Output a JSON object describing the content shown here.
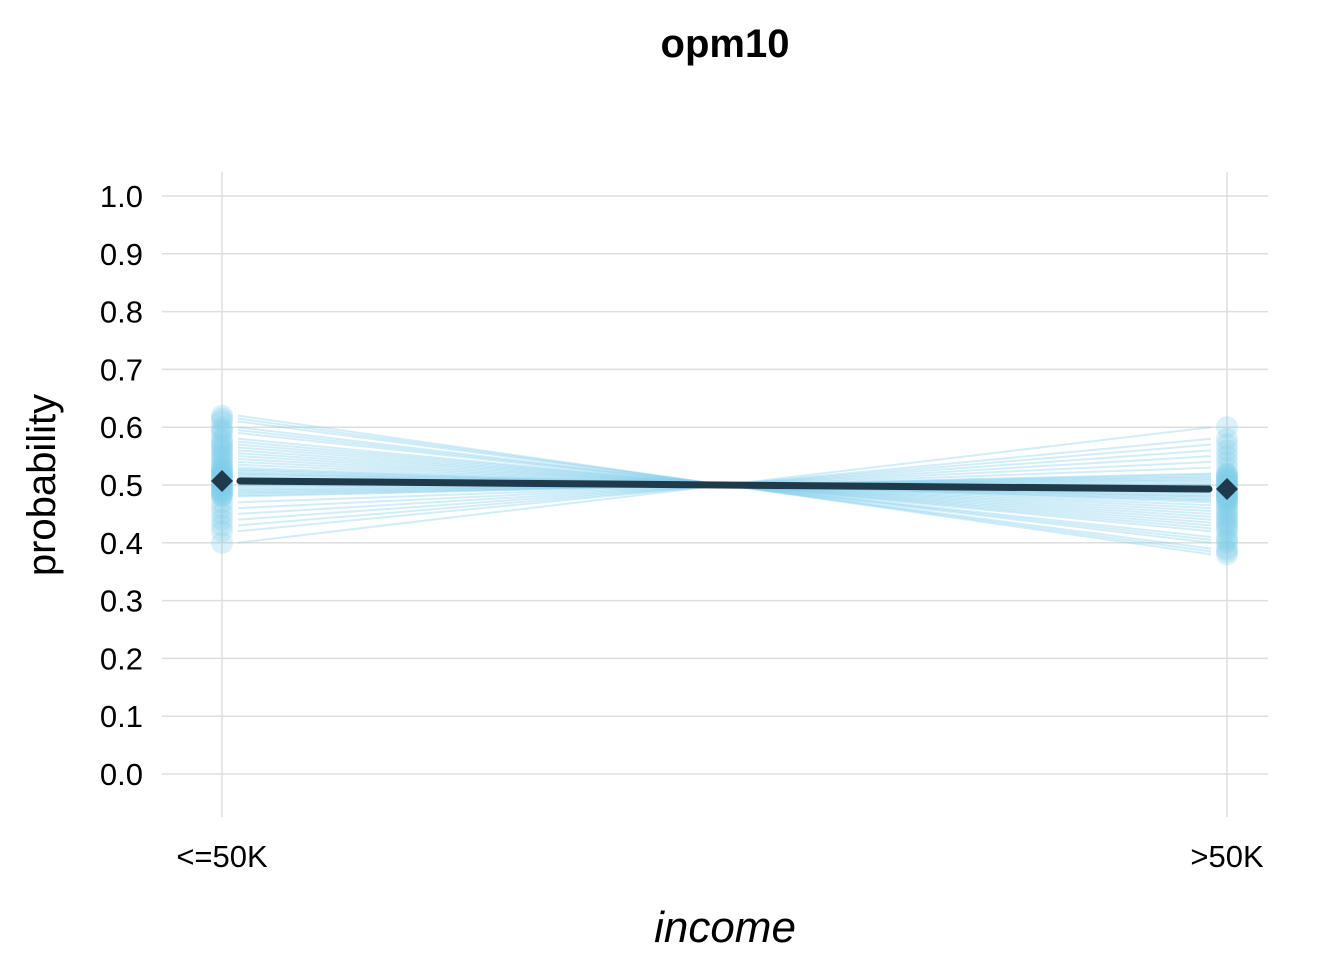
{
  "chart_data": {
    "type": "line",
    "title": "opm10",
    "xlabel": "income",
    "ylabel": "probability",
    "categories": [
      "<=50K",
      ">50K"
    ],
    "ylim": [
      0,
      1
    ],
    "yticks": [
      "0.0",
      "0.1",
      "0.2",
      "0.3",
      "0.4",
      "0.5",
      "0.6",
      "0.7",
      "0.8",
      "0.9",
      "1.0"
    ],
    "grid": true,
    "mean_series": {
      "values": [
        0.507,
        0.493
      ],
      "color": "#1f3a4a"
    },
    "sample_series_color": "#7ccbea",
    "sample_series": [
      [
        0.62,
        0.38
      ],
      [
        0.615,
        0.385
      ],
      [
        0.61,
        0.39
      ],
      [
        0.6,
        0.4
      ],
      [
        0.595,
        0.405
      ],
      [
        0.59,
        0.41
      ],
      [
        0.58,
        0.42
      ],
      [
        0.575,
        0.425
      ],
      [
        0.57,
        0.43
      ],
      [
        0.565,
        0.435
      ],
      [
        0.56,
        0.44
      ],
      [
        0.555,
        0.445
      ],
      [
        0.55,
        0.45
      ],
      [
        0.545,
        0.455
      ],
      [
        0.54,
        0.46
      ],
      [
        0.535,
        0.465
      ],
      [
        0.53,
        0.47
      ],
      [
        0.527,
        0.473
      ],
      [
        0.525,
        0.475
      ],
      [
        0.522,
        0.478
      ],
      [
        0.52,
        0.48
      ],
      [
        0.518,
        0.482
      ],
      [
        0.515,
        0.485
      ],
      [
        0.513,
        0.487
      ],
      [
        0.51,
        0.49
      ],
      [
        0.508,
        0.492
      ],
      [
        0.505,
        0.495
      ],
      [
        0.503,
        0.497
      ],
      [
        0.5,
        0.5
      ],
      [
        0.498,
        0.502
      ],
      [
        0.495,
        0.505
      ],
      [
        0.492,
        0.508
      ],
      [
        0.49,
        0.51
      ],
      [
        0.487,
        0.513
      ],
      [
        0.485,
        0.515
      ],
      [
        0.482,
        0.518
      ],
      [
        0.48,
        0.52
      ],
      [
        0.47,
        0.53
      ],
      [
        0.46,
        0.54
      ],
      [
        0.45,
        0.55
      ],
      [
        0.44,
        0.56
      ],
      [
        0.43,
        0.57
      ],
      [
        0.42,
        0.58
      ],
      [
        0.4,
        0.6
      ]
    ]
  }
}
